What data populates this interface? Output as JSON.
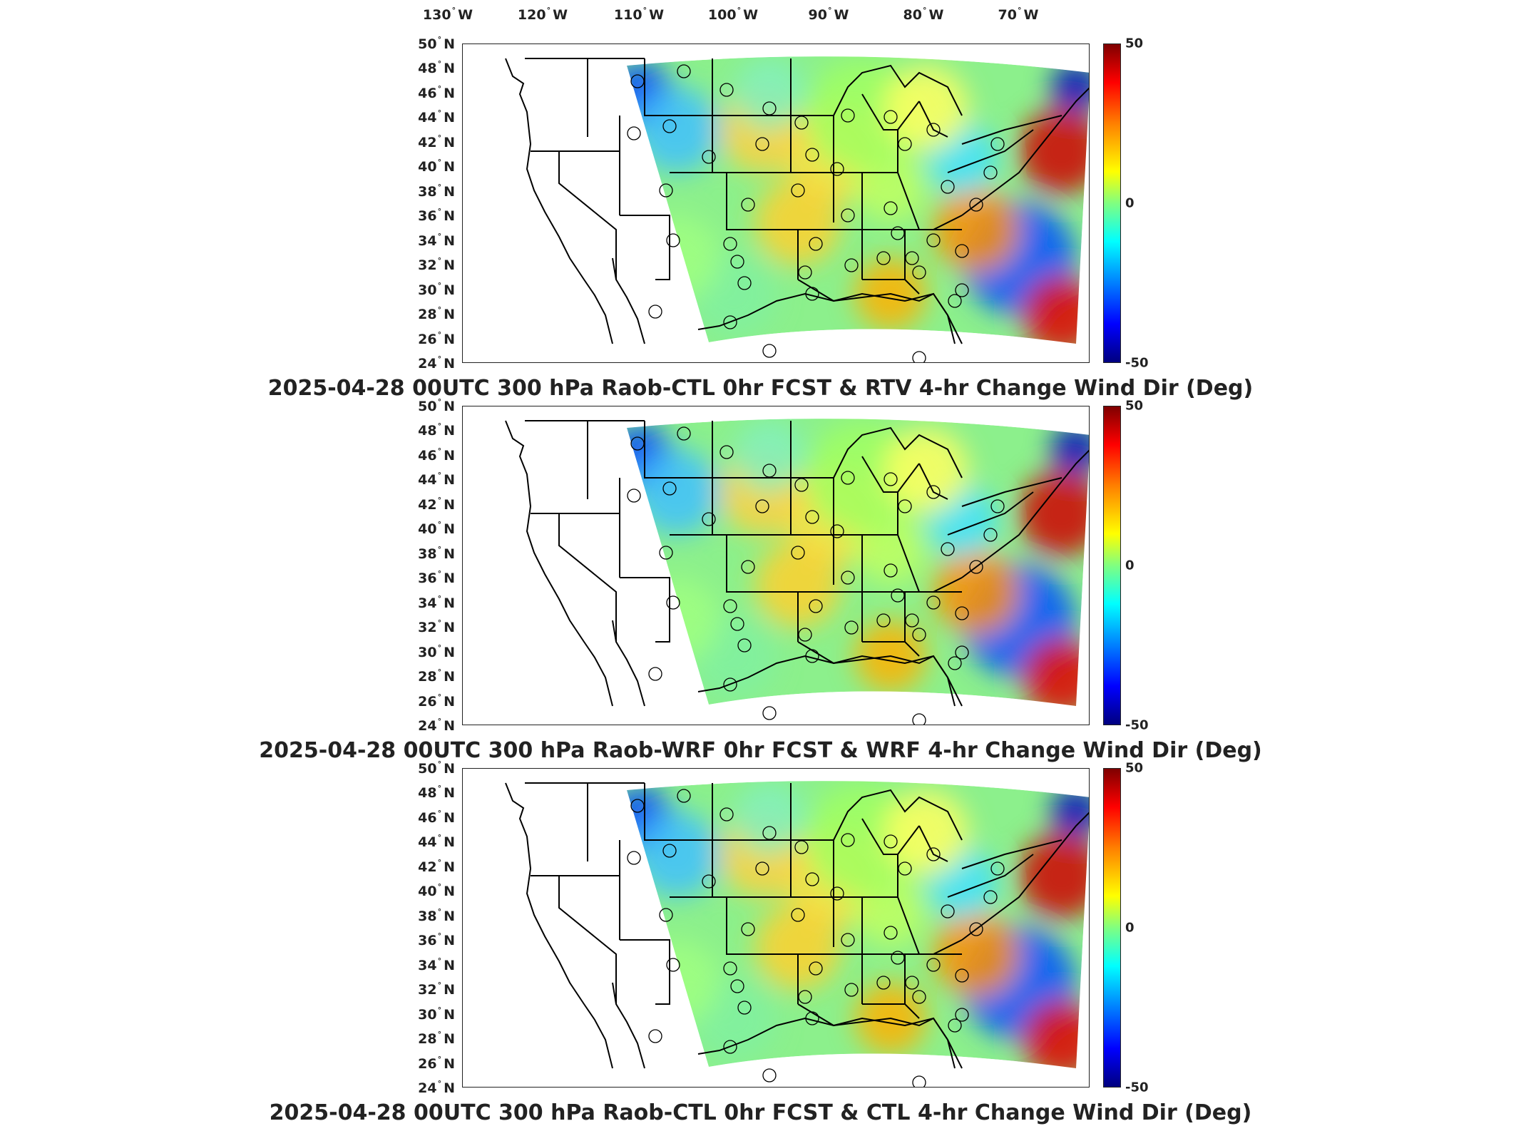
{
  "lon_labels": [
    {
      "deg": "130",
      "hem": "W"
    },
    {
      "deg": "120",
      "hem": "W"
    },
    {
      "deg": "110",
      "hem": "W"
    },
    {
      "deg": "100",
      "hem": "W"
    },
    {
      "deg": "90",
      "hem": "W"
    },
    {
      "deg": "80",
      "hem": "W"
    },
    {
      "deg": "70",
      "hem": "W"
    }
  ],
  "lat_labels": [
    {
      "deg": "50",
      "hem": "N"
    },
    {
      "deg": "48",
      "hem": "N"
    },
    {
      "deg": "46",
      "hem": "N"
    },
    {
      "deg": "44",
      "hem": "N"
    },
    {
      "deg": "42",
      "hem": "N"
    },
    {
      "deg": "40",
      "hem": "N"
    },
    {
      "deg": "38",
      "hem": "N"
    },
    {
      "deg": "36",
      "hem": "N"
    },
    {
      "deg": "34",
      "hem": "N"
    },
    {
      "deg": "32",
      "hem": "N"
    },
    {
      "deg": "30",
      "hem": "N"
    },
    {
      "deg": "28",
      "hem": "N"
    },
    {
      "deg": "26",
      "hem": "N"
    },
    {
      "deg": "24",
      "hem": "N"
    }
  ],
  "degree_symbol": "°",
  "colorbar": {
    "max": "50",
    "mid": "0",
    "min": "-50"
  },
  "colors": {
    "field_background": "#8cf08c",
    "land_outline": "#000000",
    "warm": "#ff2000",
    "cold": "#0030ff"
  },
  "panels": [
    {
      "title": "2025-04-28 00UTC 300 hPa Raob-CTL 0hr FCST & RTV 4-hr Change Wind Dir (Deg)"
    },
    {
      "title": "2025-04-28 00UTC 300 hPa Raob-WRF 0hr FCST & WRF 4-hr Change Wind Dir (Deg)"
    },
    {
      "title": "2025-04-28 00UTC 300 hPa Raob-CTL 0hr FCST & CTL 4-hr Change Wind Dir (Deg)"
    }
  ]
}
